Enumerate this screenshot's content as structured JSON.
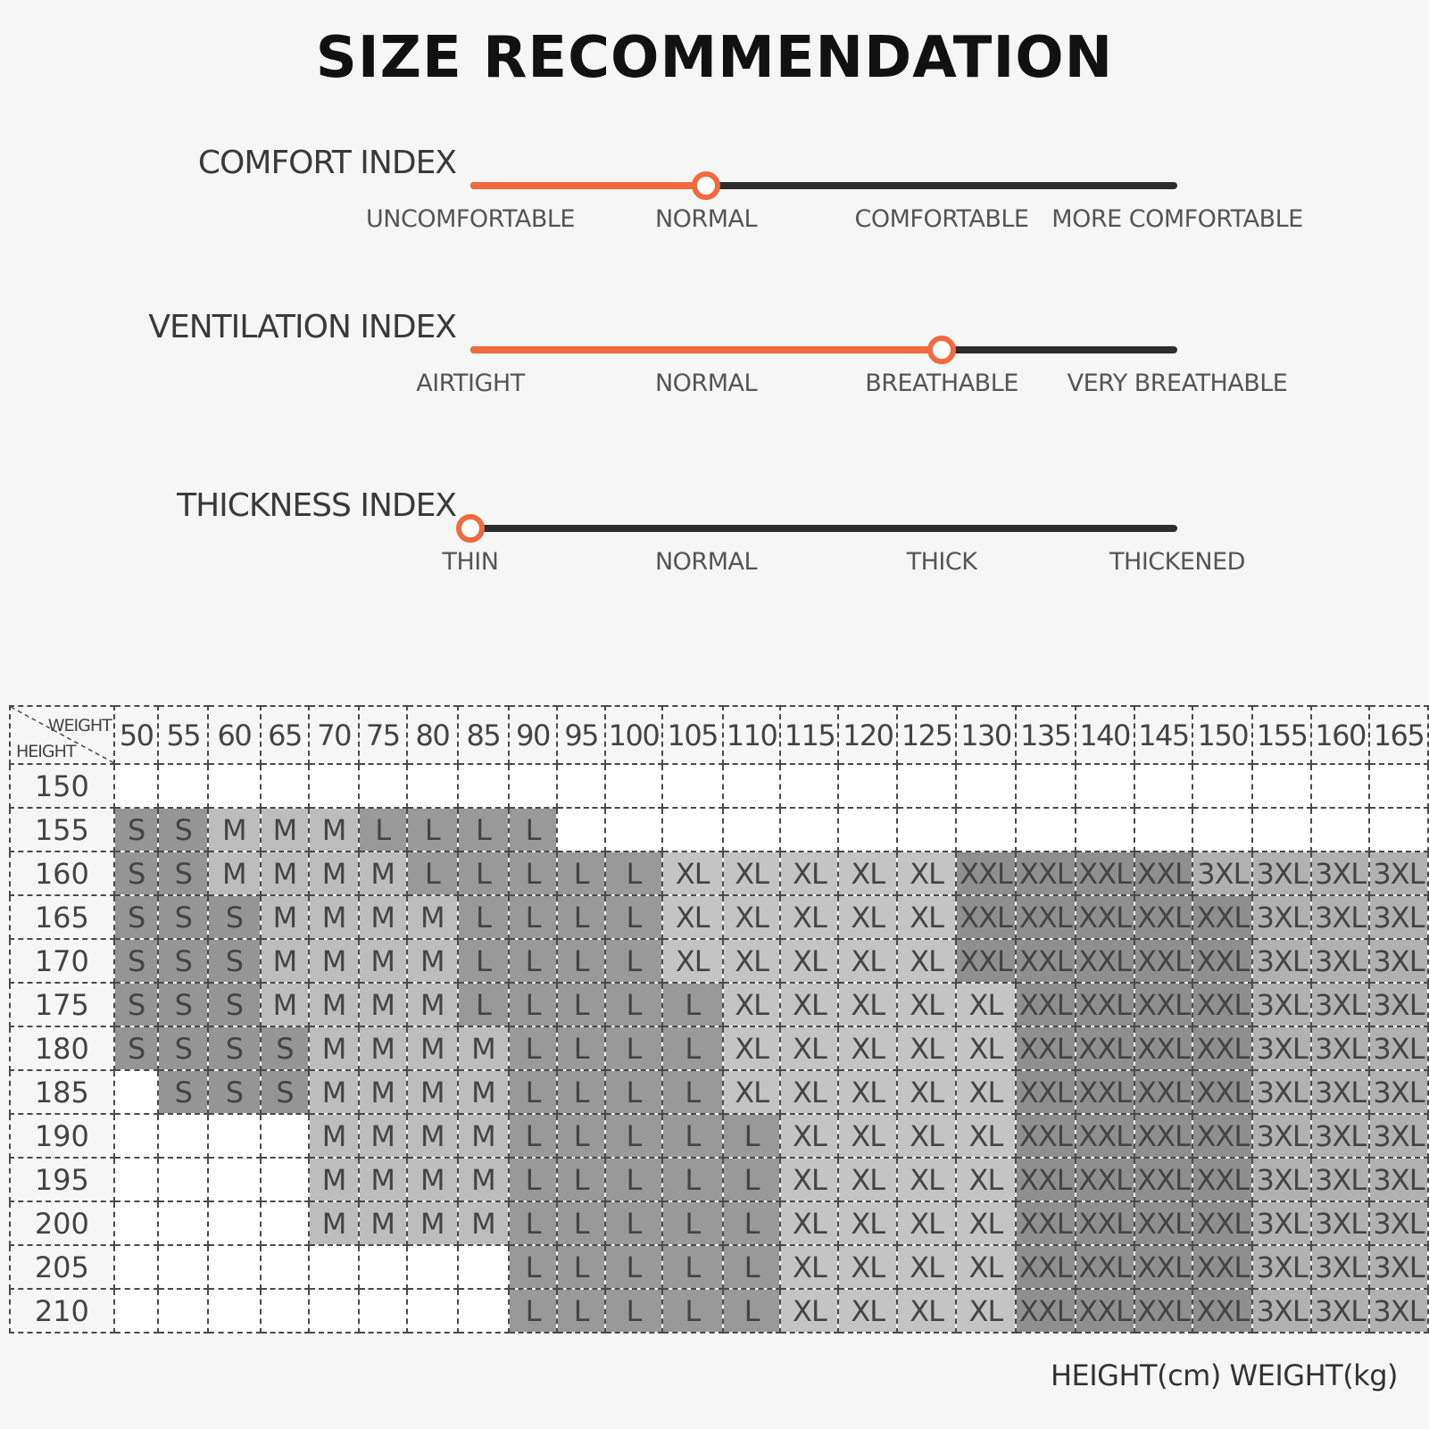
{
  "title": "SIZE RECOMMENDATION",
  "indices": [
    {
      "id": "comfort",
      "label": "COMFORT INDEX",
      "ticks": [
        "UNCOMFORTABLE",
        "NORMAL",
        "COMFORTABLE",
        "MORE COMFORTABLE"
      ],
      "level": 0.333,
      "accent": "#f26a3d"
    },
    {
      "id": "vent",
      "label": "VENTILATION INDEX",
      "ticks": [
        "AIRTIGHT",
        "NORMAL",
        "BREATHABLE",
        "VERY BREATHABLE"
      ],
      "level": 0.667,
      "accent": "#f26a3d"
    },
    {
      "id": "thick",
      "label": "THICKNESS INDEX",
      "ticks": [
        "THIN",
        "NORMAL",
        "THICK",
        "THICKENED"
      ],
      "level": 0,
      "accent": "#f26a3d"
    }
  ],
  "table": {
    "corner_weight": "WEIGHT",
    "corner_height": "HEIGHT",
    "weights": [
      "50",
      "55",
      "60",
      "65",
      "70",
      "75",
      "80",
      "85",
      "90",
      "95",
      "100",
      "105",
      "110",
      "115",
      "120",
      "125",
      "130",
      "135",
      "140",
      "145",
      "150",
      "155",
      "160",
      "165"
    ],
    "rows": [
      {
        "height": "150",
        "sizes": [
          "",
          "",
          "",
          "",
          "",
          "",
          "",
          "",
          "",
          "",
          "",
          "",
          "",
          "",
          "",
          "",
          "",
          "",
          "",
          "",
          "",
          "",
          "",
          ""
        ]
      },
      {
        "height": "155",
        "sizes": [
          "S",
          "S",
          "M",
          "M",
          "M",
          "L",
          "L",
          "L",
          "L",
          "",
          "",
          "",
          "",
          "",
          "",
          "",
          "",
          "",
          "",
          "",
          "",
          "",
          "",
          ""
        ]
      },
      {
        "height": "160",
        "sizes": [
          "S",
          "S",
          "M",
          "M",
          "M",
          "M",
          "L",
          "L",
          "L",
          "L",
          "L",
          "XL",
          "XL",
          "XL",
          "XL",
          "XL",
          "XXL",
          "XXL",
          "XXL",
          "XXL",
          "3XL",
          "3XL",
          "3XL",
          "3XL"
        ]
      },
      {
        "height": "165",
        "sizes": [
          "S",
          "S",
          "S",
          "M",
          "M",
          "M",
          "M",
          "L",
          "L",
          "L",
          "L",
          "XL",
          "XL",
          "XL",
          "XL",
          "XL",
          "XXL",
          "XXL",
          "XXL",
          "XXL",
          "XXL",
          "3XL",
          "3XL",
          "3XL"
        ]
      },
      {
        "height": "170",
        "sizes": [
          "S",
          "S",
          "S",
          "M",
          "M",
          "M",
          "M",
          "L",
          "L",
          "L",
          "L",
          "XL",
          "XL",
          "XL",
          "XL",
          "XL",
          "XXL",
          "XXL",
          "XXL",
          "XXL",
          "XXL",
          "3XL",
          "3XL",
          "3XL"
        ]
      },
      {
        "height": "175",
        "sizes": [
          "S",
          "S",
          "S",
          "M",
          "M",
          "M",
          "M",
          "L",
          "L",
          "L",
          "L",
          "L",
          "XL",
          "XL",
          "XL",
          "XL",
          "XL",
          "XXL",
          "XXL",
          "XXL",
          "XXL",
          "3XL",
          "3XL",
          "3XL"
        ]
      },
      {
        "height": "180",
        "sizes": [
          "S",
          "S",
          "S",
          "S",
          "M",
          "M",
          "M",
          "M",
          "L",
          "L",
          "L",
          "L",
          "XL",
          "XL",
          "XL",
          "XL",
          "XL",
          "XXL",
          "XXL",
          "XXL",
          "XXL",
          "3XL",
          "3XL",
          "3XL"
        ]
      },
      {
        "height": "185",
        "sizes": [
          "",
          "S",
          "S",
          "S",
          "M",
          "M",
          "M",
          "M",
          "L",
          "L",
          "L",
          "L",
          "XL",
          "XL",
          "XL",
          "XL",
          "XL",
          "XXL",
          "XXL",
          "XXL",
          "XXL",
          "3XL",
          "3XL",
          "3XL"
        ]
      },
      {
        "height": "190",
        "sizes": [
          "",
          "",
          "",
          "",
          "M",
          "M",
          "M",
          "M",
          "L",
          "L",
          "L",
          "L",
          "L",
          "XL",
          "XL",
          "XL",
          "XL",
          "XXL",
          "XXL",
          "XXL",
          "XXL",
          "3XL",
          "3XL",
          "3XL"
        ]
      },
      {
        "height": "195",
        "sizes": [
          "",
          "",
          "",
          "",
          "M",
          "M",
          "M",
          "M",
          "L",
          "L",
          "L",
          "L",
          "L",
          "XL",
          "XL",
          "XL",
          "XL",
          "XXL",
          "XXL",
          "XXL",
          "XXL",
          "3XL",
          "3XL",
          "3XL"
        ]
      },
      {
        "height": "200",
        "sizes": [
          "",
          "",
          "",
          "",
          "M",
          "M",
          "M",
          "M",
          "L",
          "L",
          "L",
          "L",
          "L",
          "XL",
          "XL",
          "XL",
          "XL",
          "XXL",
          "XXL",
          "XXL",
          "XXL",
          "3XL",
          "3XL",
          "3XL"
        ]
      },
      {
        "height": "205",
        "sizes": [
          "",
          "",
          "",
          "",
          "",
          "",
          "",
          "",
          "L",
          "L",
          "L",
          "L",
          "L",
          "XL",
          "XL",
          "XL",
          "XL",
          "XXL",
          "XXL",
          "XXL",
          "XXL",
          "3XL",
          "3XL",
          "3XL"
        ]
      },
      {
        "height": "210",
        "sizes": [
          "",
          "",
          "",
          "",
          "",
          "",
          "",
          "",
          "L",
          "L",
          "L",
          "L",
          "L",
          "XL",
          "XL",
          "XL",
          "XL",
          "XXL",
          "XXL",
          "XXL",
          "XXL",
          "3XL",
          "3XL",
          "3XL"
        ]
      }
    ]
  },
  "units": "HEIGHT(cm) WEIGHT(kg)"
}
